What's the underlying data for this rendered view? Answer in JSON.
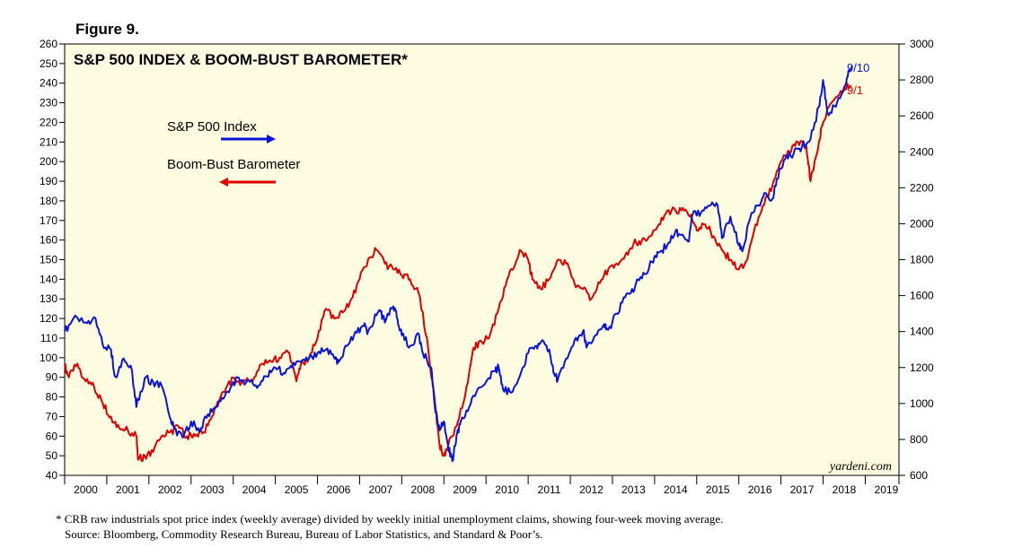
{
  "figure_label": "Figure 9.",
  "watermark": "yardeni.com",
  "footnote": {
    "line1": "*  CRB raw industrials spot price index (weekly average) divided by weekly initial unemployment claims, showing four-week moving average.",
    "line2": "Source: Bloomberg, Commodity Research Bureau, Bureau of Labor Statistics, and Standard & Poor’s."
  },
  "colors": {
    "plot_background": "#fdfbe0",
    "sp500": "#0a14d8",
    "boom_bust": "#e00000",
    "axis": "#000000"
  },
  "chart_data": {
    "type": "line",
    "title": "S&P 500 INDEX & BOOM-BUST BAROMETER*",
    "legend": [
      {
        "name": "S&P 500 Index",
        "axis": "right",
        "arrow": "right"
      },
      {
        "name": "Boom-Bust Barometer",
        "axis": "left",
        "arrow": "left"
      }
    ],
    "legend_placement": "upper-left",
    "grid": false,
    "x": {
      "type": "year",
      "range": [
        2000,
        2019.8
      ],
      "tick_labels": [
        "2000",
        "2001",
        "2002",
        "2003",
        "2004",
        "2005",
        "2006",
        "2007",
        "2008",
        "2009",
        "2010",
        "2011",
        "2012",
        "2013",
        "2014",
        "2015",
        "2016",
        "2017",
        "2018",
        "2019"
      ]
    },
    "y_left": {
      "range": [
        40,
        260
      ],
      "ticks": [
        40,
        50,
        60,
        70,
        80,
        90,
        100,
        110,
        120,
        130,
        140,
        150,
        160,
        170,
        180,
        190,
        200,
        210,
        220,
        230,
        240,
        250,
        260
      ]
    },
    "y_right": {
      "range": [
        600,
        3000
      ],
      "ticks": [
        600,
        800,
        1000,
        1200,
        1400,
        1600,
        1800,
        2000,
        2200,
        2400,
        2600,
        2800,
        3000
      ]
    },
    "end_labels": {
      "sp500": "9/10",
      "boom_bust": "9/1"
    },
    "series": [
      {
        "name": "S&P 500 Index",
        "axis": "right",
        "points": [
          [
            2000.0,
            1400
          ],
          [
            2000.2,
            1470
          ],
          [
            2000.5,
            1450
          ],
          [
            2000.7,
            1480
          ],
          [
            2000.9,
            1330
          ],
          [
            2001.1,
            1300
          ],
          [
            2001.2,
            1150
          ],
          [
            2001.4,
            1250
          ],
          [
            2001.6,
            1180
          ],
          [
            2001.7,
            980
          ],
          [
            2001.9,
            1140
          ],
          [
            2002.1,
            1120
          ],
          [
            2002.3,
            1100
          ],
          [
            2002.5,
            920
          ],
          [
            2002.6,
            860
          ],
          [
            2002.8,
            810
          ],
          [
            2003.0,
            900
          ],
          [
            2003.2,
            840
          ],
          [
            2003.4,
            940
          ],
          [
            2003.6,
            980
          ],
          [
            2003.8,
            1040
          ],
          [
            2004.0,
            1120
          ],
          [
            2004.2,
            1130
          ],
          [
            2004.4,
            1120
          ],
          [
            2004.6,
            1100
          ],
          [
            2004.8,
            1150
          ],
          [
            2005.0,
            1200
          ],
          [
            2005.2,
            1170
          ],
          [
            2005.4,
            1200
          ],
          [
            2005.6,
            1230
          ],
          [
            2005.8,
            1250
          ],
          [
            2006.0,
            1280
          ],
          [
            2006.2,
            1300
          ],
          [
            2006.4,
            1250
          ],
          [
            2006.5,
            1230
          ],
          [
            2006.7,
            1320
          ],
          [
            2006.9,
            1400
          ],
          [
            2007.1,
            1430
          ],
          [
            2007.2,
            1400
          ],
          [
            2007.4,
            1490
          ],
          [
            2007.5,
            1510
          ],
          [
            2007.6,
            1450
          ],
          [
            2007.8,
            1540
          ],
          [
            2007.9,
            1470
          ],
          [
            2008.0,
            1380
          ],
          [
            2008.2,
            1320
          ],
          [
            2008.4,
            1390
          ],
          [
            2008.5,
            1280
          ],
          [
            2008.7,
            1200
          ],
          [
            2008.8,
            950
          ],
          [
            2008.9,
            850
          ],
          [
            2009.0,
            900
          ],
          [
            2009.1,
            760
          ],
          [
            2009.2,
            680
          ],
          [
            2009.3,
            820
          ],
          [
            2009.4,
            900
          ],
          [
            2009.6,
            980
          ],
          [
            2009.8,
            1080
          ],
          [
            2010.0,
            1120
          ],
          [
            2010.2,
            1180
          ],
          [
            2010.3,
            1200
          ],
          [
            2010.4,
            1080
          ],
          [
            2010.6,
            1060
          ],
          [
            2010.8,
            1150
          ],
          [
            2011.0,
            1280
          ],
          [
            2011.2,
            1320
          ],
          [
            2011.3,
            1340
          ],
          [
            2011.5,
            1300
          ],
          [
            2011.6,
            1170
          ],
          [
            2011.7,
            1130
          ],
          [
            2011.9,
            1250
          ],
          [
            2012.1,
            1350
          ],
          [
            2012.3,
            1400
          ],
          [
            2012.4,
            1320
          ],
          [
            2012.6,
            1380
          ],
          [
            2012.8,
            1440
          ],
          [
            2012.9,
            1410
          ],
          [
            2013.1,
            1500
          ],
          [
            2013.3,
            1590
          ],
          [
            2013.5,
            1620
          ],
          [
            2013.6,
            1690
          ],
          [
            2013.8,
            1720
          ],
          [
            2014.0,
            1820
          ],
          [
            2014.1,
            1840
          ],
          [
            2014.3,
            1880
          ],
          [
            2014.5,
            1960
          ],
          [
            2014.6,
            1940
          ],
          [
            2014.8,
            1900
          ],
          [
            2014.9,
            2050
          ],
          [
            2015.1,
            2060
          ],
          [
            2015.3,
            2100
          ],
          [
            2015.5,
            2100
          ],
          [
            2015.6,
            1920
          ],
          [
            2015.8,
            2040
          ],
          [
            2016.0,
            1880
          ],
          [
            2016.1,
            1860
          ],
          [
            2016.3,
            2060
          ],
          [
            2016.5,
            2100
          ],
          [
            2016.6,
            2170
          ],
          [
            2016.8,
            2140
          ],
          [
            2016.9,
            2250
          ],
          [
            2017.1,
            2360
          ],
          [
            2017.3,
            2390
          ],
          [
            2017.5,
            2430
          ],
          [
            2017.7,
            2470
          ],
          [
            2017.9,
            2650
          ],
          [
            2018.0,
            2800
          ],
          [
            2018.1,
            2620
          ],
          [
            2018.3,
            2650
          ],
          [
            2018.5,
            2760
          ],
          [
            2018.6,
            2850
          ],
          [
            2018.69,
            2880
          ]
        ]
      },
      {
        "name": "Boom-Bust Barometer",
        "axis": "left",
        "points": [
          [
            2000.0,
            96
          ],
          [
            2000.1,
            90
          ],
          [
            2000.3,
            97
          ],
          [
            2000.5,
            88
          ],
          [
            2000.7,
            85
          ],
          [
            2000.9,
            77
          ],
          [
            2001.1,
            70
          ],
          [
            2001.3,
            64
          ],
          [
            2001.5,
            63
          ],
          [
            2001.7,
            60
          ],
          [
            2001.75,
            48
          ],
          [
            2001.9,
            50
          ],
          [
            2002.1,
            52
          ],
          [
            2002.3,
            60
          ],
          [
            2002.5,
            62
          ],
          [
            2002.7,
            65
          ],
          [
            2002.9,
            60
          ],
          [
            2003.1,
            60
          ],
          [
            2003.3,
            62
          ],
          [
            2003.5,
            70
          ],
          [
            2003.7,
            80
          ],
          [
            2003.9,
            88
          ],
          [
            2004.1,
            88
          ],
          [
            2004.3,
            88
          ],
          [
            2004.5,
            90
          ],
          [
            2004.7,
            97
          ],
          [
            2004.9,
            98
          ],
          [
            2005.1,
            100
          ],
          [
            2005.3,
            103
          ],
          [
            2005.5,
            88
          ],
          [
            2005.6,
            96
          ],
          [
            2005.8,
            100
          ],
          [
            2006.0,
            110
          ],
          [
            2006.2,
            125
          ],
          [
            2006.4,
            120
          ],
          [
            2006.6,
            123
          ],
          [
            2006.8,
            130
          ],
          [
            2007.0,
            140
          ],
          [
            2007.2,
            150
          ],
          [
            2007.4,
            155
          ],
          [
            2007.6,
            148
          ],
          [
            2007.8,
            145
          ],
          [
            2008.0,
            142
          ],
          [
            2008.2,
            140
          ],
          [
            2008.4,
            133
          ],
          [
            2008.6,
            110
          ],
          [
            2008.8,
            75
          ],
          [
            2008.9,
            55
          ],
          [
            2009.0,
            50
          ],
          [
            2009.1,
            55
          ],
          [
            2009.3,
            65
          ],
          [
            2009.5,
            80
          ],
          [
            2009.7,
            105
          ],
          [
            2009.9,
            108
          ],
          [
            2010.1,
            112
          ],
          [
            2010.3,
            125
          ],
          [
            2010.5,
            140
          ],
          [
            2010.7,
            148
          ],
          [
            2010.8,
            155
          ],
          [
            2011.0,
            150
          ],
          [
            2011.1,
            140
          ],
          [
            2011.3,
            135
          ],
          [
            2011.5,
            140
          ],
          [
            2011.7,
            150
          ],
          [
            2011.9,
            148
          ],
          [
            2012.1,
            138
          ],
          [
            2012.3,
            135
          ],
          [
            2012.5,
            130
          ],
          [
            2012.7,
            138
          ],
          [
            2012.9,
            145
          ],
          [
            2013.1,
            148
          ],
          [
            2013.3,
            152
          ],
          [
            2013.5,
            158
          ],
          [
            2013.7,
            160
          ],
          [
            2013.9,
            162
          ],
          [
            2014.1,
            168
          ],
          [
            2014.3,
            175
          ],
          [
            2014.5,
            175
          ],
          [
            2014.7,
            175
          ],
          [
            2014.9,
            170
          ],
          [
            2015.0,
            165
          ],
          [
            2015.2,
            168
          ],
          [
            2015.4,
            162
          ],
          [
            2015.6,
            155
          ],
          [
            2015.8,
            150
          ],
          [
            2016.0,
            145
          ],
          [
            2016.2,
            150
          ],
          [
            2016.4,
            168
          ],
          [
            2016.6,
            178
          ],
          [
            2016.8,
            188
          ],
          [
            2017.0,
            200
          ],
          [
            2017.2,
            205
          ],
          [
            2017.4,
            210
          ],
          [
            2017.6,
            208
          ],
          [
            2017.7,
            190
          ],
          [
            2017.9,
            210
          ],
          [
            2018.0,
            220
          ],
          [
            2018.2,
            230
          ],
          [
            2018.4,
            235
          ],
          [
            2018.5,
            238
          ],
          [
            2018.65,
            239
          ]
        ]
      }
    ]
  }
}
